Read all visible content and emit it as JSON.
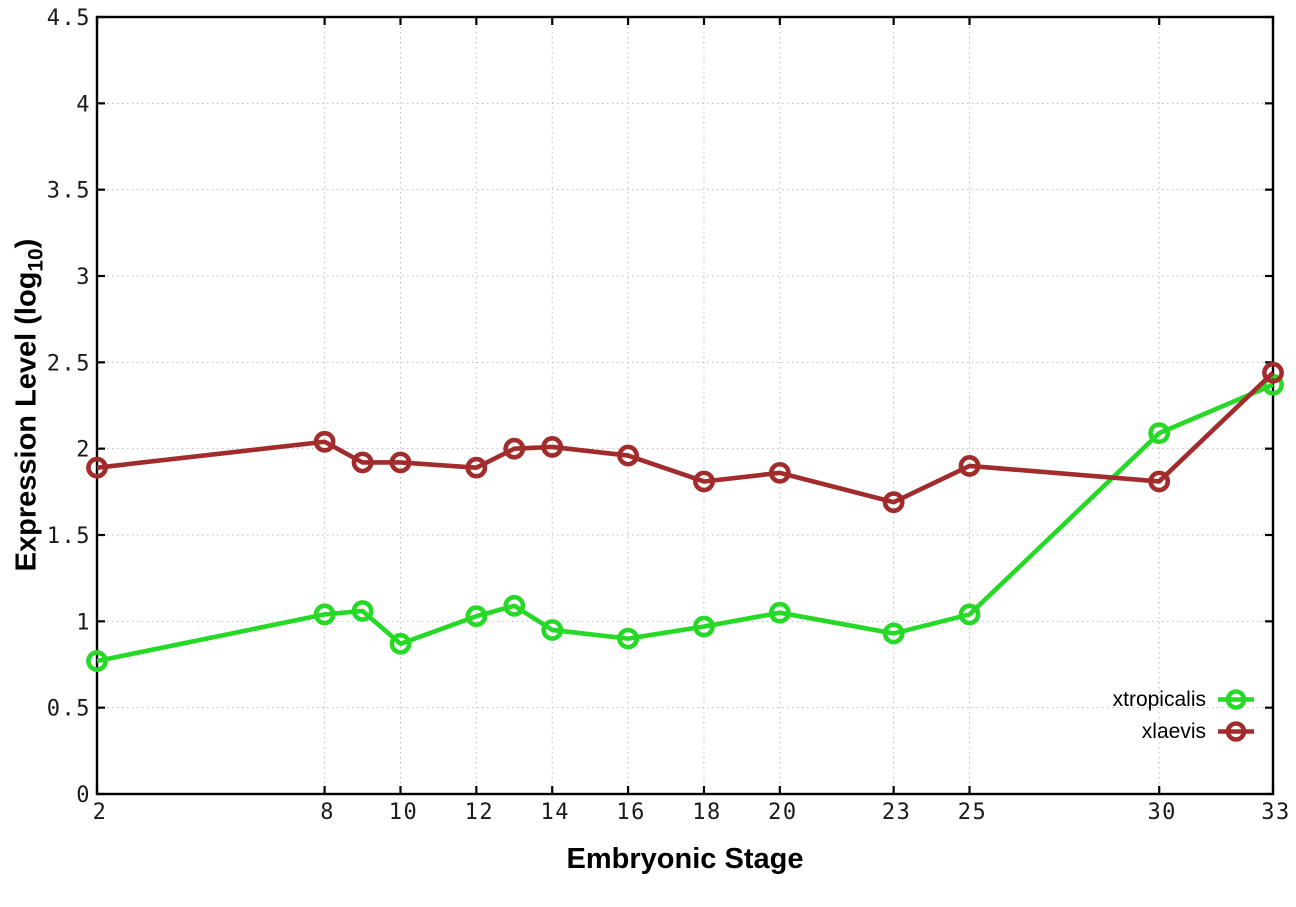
{
  "chart_data": {
    "type": "line",
    "xlabel": "Embryonic Stage",
    "ylabel_main": "Expression Level (log",
    "ylabel_sub": "10",
    "ylabel_close": ")",
    "x": [
      2,
      8,
      9,
      10,
      12,
      13,
      14,
      16,
      18,
      20,
      23,
      25,
      30,
      33
    ],
    "series": [
      {
        "name": "xtropicalis",
        "color": "#26d926",
        "values": [
          0.77,
          1.04,
          1.06,
          0.87,
          1.03,
          1.09,
          0.95,
          0.9,
          0.97,
          1.05,
          0.93,
          1.04,
          2.09,
          2.37
        ]
      },
      {
        "name": "xlaevis",
        "color": "#a22c2c",
        "values": [
          1.89,
          2.04,
          1.92,
          1.92,
          1.89,
          2.0,
          2.01,
          1.96,
          1.81,
          1.86,
          1.69,
          1.9,
          1.81,
          2.44
        ]
      }
    ],
    "x_ticks": [
      2,
      8,
      10,
      12,
      14,
      16,
      18,
      20,
      23,
      25,
      30,
      33
    ],
    "x_tick_labels": [
      "2",
      "8",
      "10",
      "12",
      "14",
      "16",
      "18",
      "20",
      "23",
      "25",
      "30",
      "33"
    ],
    "y_ticks": [
      0,
      0.5,
      1,
      1.5,
      2,
      2.5,
      3,
      3.5,
      4,
      4.5
    ],
    "y_tick_labels": [
      "0",
      "0.5",
      "1",
      "1.5",
      "2",
      "2.5",
      "3",
      "3.5",
      "4",
      "4.5"
    ],
    "xlim": [
      2,
      33
    ],
    "ylim": [
      0,
      4.5
    ],
    "grid": true,
    "legend_position": "bottom-right",
    "colors": {
      "border": "#000000",
      "grid": "#bcbcbc",
      "tick_text": "#1a1a1a",
      "background": "#ffffff"
    }
  }
}
